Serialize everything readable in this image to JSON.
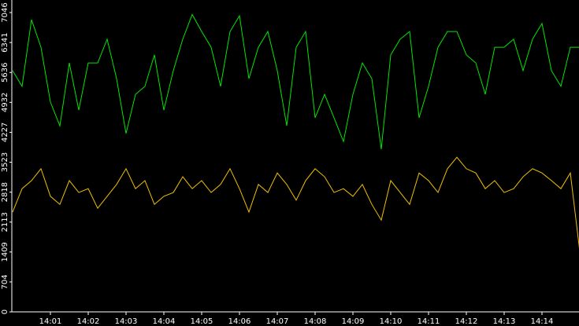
{
  "chart_data": {
    "type": "line",
    "x": [
      0,
      0.25,
      0.5,
      0.75,
      1,
      1.25,
      1.5,
      1.75,
      2,
      2.25,
      2.5,
      2.75,
      3,
      3.25,
      3.5,
      3.75,
      4,
      4.25,
      4.5,
      4.75,
      5,
      5.25,
      5.5,
      5.75,
      6,
      6.25,
      6.5,
      6.75,
      7,
      7.25,
      7.5,
      7.75,
      8,
      8.25,
      8.5,
      8.75,
      9,
      9.25,
      9.5,
      9.75,
      10,
      10.25,
      10.5,
      10.75,
      11,
      11.25,
      11.5,
      11.75,
      12,
      12.25,
      12.5,
      12.75,
      13,
      13.25,
      13.5,
      13.75,
      14,
      14.25,
      14.5,
      14.75,
      15
    ],
    "series": [
      {
        "color": "#00e600",
        "values": [
          5680,
          5310,
          6880,
          6230,
          4940,
          4380,
          5860,
          4750,
          5860,
          5860,
          6420,
          5490,
          4200,
          5120,
          5310,
          6050,
          4750,
          5680,
          6420,
          7000,
          6600,
          6230,
          5310,
          6600,
          6970,
          5490,
          6230,
          6600,
          5680,
          4380,
          6230,
          6600,
          4570,
          5120,
          4570,
          4010,
          5120,
          5860,
          5490,
          3830,
          6050,
          6420,
          6600,
          4570,
          5310,
          6230,
          6600,
          6600,
          6050,
          5860,
          5120,
          6230,
          6230,
          6420,
          5680,
          6420,
          6790,
          5680,
          5310,
          6230,
          6230
        ]
      },
      {
        "color": "#f0c000",
        "values": [
          2350,
          2900,
          3090,
          3370,
          2720,
          2530,
          3090,
          2810,
          2900,
          2440,
          2720,
          3000,
          3370,
          2900,
          3090,
          2530,
          2720,
          2810,
          3180,
          2900,
          3090,
          2810,
          3000,
          3370,
          2900,
          2350,
          3000,
          2810,
          3270,
          3000,
          2630,
          3090,
          3370,
          3180,
          2810,
          2900,
          2720,
          3000,
          2530,
          2160,
          3090,
          2810,
          2530,
          3270,
          3090,
          2810,
          3370,
          3640,
          3370,
          3270,
          2900,
          3090,
          2810,
          2900,
          3180,
          3370,
          3270,
          3090,
          2900,
          3270,
          1420
        ]
      }
    ],
    "xlim": [
      0,
      15
    ],
    "xticks": [
      {
        "value": 1,
        "label": "14:01"
      },
      {
        "value": 2,
        "label": "14:02"
      },
      {
        "value": 3,
        "label": "14:03"
      },
      {
        "value": 4,
        "label": "14:04"
      },
      {
        "value": 5,
        "label": "14:05"
      },
      {
        "value": 6,
        "label": "14:06"
      },
      {
        "value": 7,
        "label": "14:07"
      },
      {
        "value": 8,
        "label": "14:08"
      },
      {
        "value": 9,
        "label": "14:09"
      },
      {
        "value": 10,
        "label": "14:10"
      },
      {
        "value": 11,
        "label": "14:11"
      },
      {
        "value": 12,
        "label": "14:12"
      },
      {
        "value": 13,
        "label": "14:13"
      },
      {
        "value": 14,
        "label": "14:14"
      }
    ],
    "ylim": [
      0,
      7046
    ],
    "yticks": [
      0,
      704,
      1409,
      2113,
      2818,
      3523,
      4227,
      4932,
      5636,
      6341,
      7046
    ]
  }
}
